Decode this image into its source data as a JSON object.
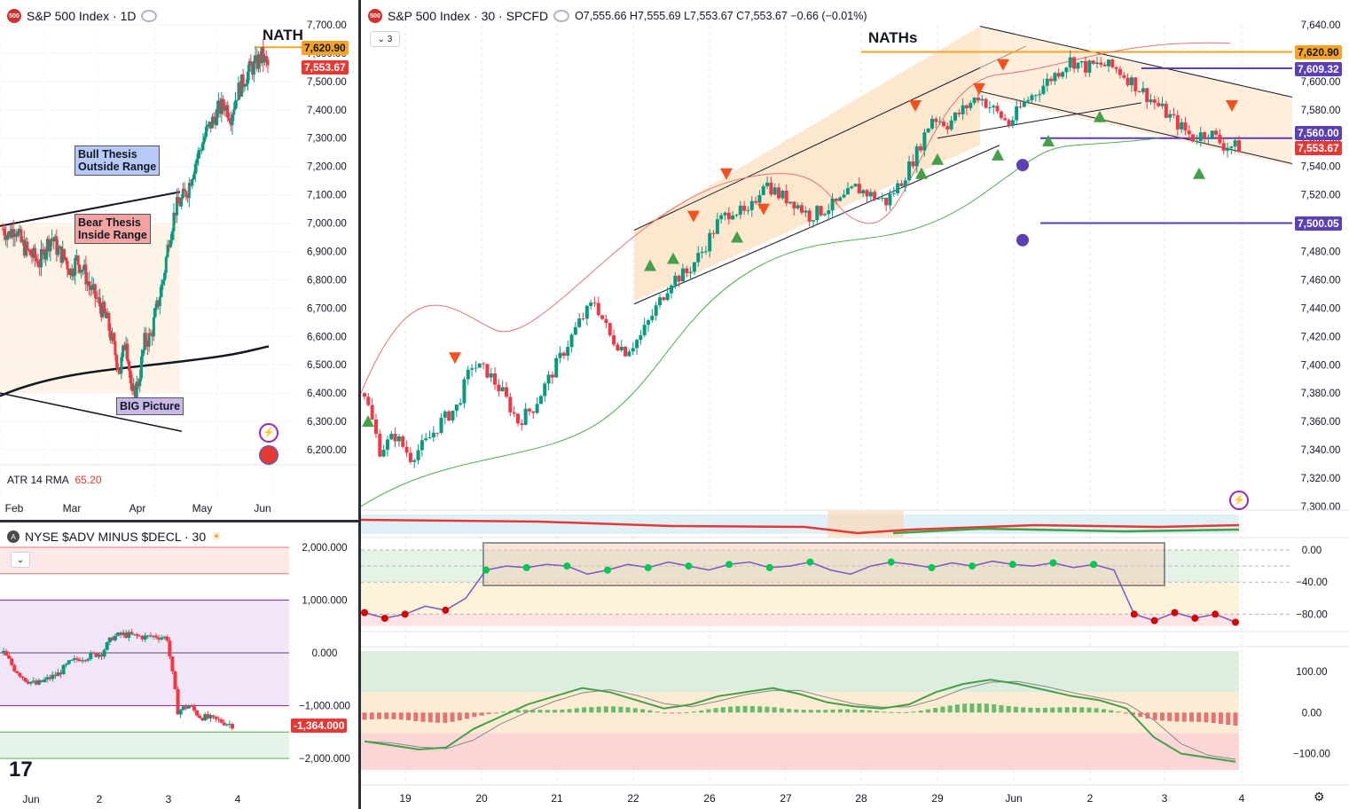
{
  "left_top": {
    "title": "S&P 500 Index · 1D",
    "symbol_badge": "500",
    "price_high_tag": "7,620.90",
    "price_last_tag": "7,553.67",
    "nath_label": "NATH",
    "notes": {
      "bull": [
        "Bull Thesis",
        "Outside Range"
      ],
      "bear": [
        "Bear Thesis",
        "Inside Range"
      ],
      "big": "BIG Picture"
    },
    "atr_label": "ATR 14 RMA",
    "atr_value": "65.20",
    "x_labels": [
      "Feb",
      "Mar",
      "Apr",
      "May",
      "Jun"
    ],
    "y_labels": [
      "7,700.00",
      "7,600.00",
      "7,500.00",
      "7,400.00",
      "7,300.00",
      "7,200.00",
      "7,100.00",
      "7,000.00",
      "6,900.00",
      "6,800.00",
      "6,700.00",
      "6,600.00",
      "6,500.00",
      "6,400.00",
      "6,300.00",
      "6,200.00"
    ]
  },
  "left_bottom": {
    "title": "NYSE $ADV MINUS $DECL · 30",
    "last_tag": "-1,364.000",
    "y_labels": [
      "2,000.000",
      "1,000.000",
      "0.000",
      "−1,000.000",
      "−2,000.000"
    ],
    "x_labels": [
      "Jun",
      "2",
      "3",
      "4"
    ]
  },
  "main": {
    "title": "S&P 500 Index · 30 · SPCFD",
    "symbol_badge": "500",
    "ohlc": "O7,555.66 H7,555.69 L7,553.67 C7,553.67 −0.66 (−0.01%)",
    "collapse_count": "3",
    "naths_label": "NATHs",
    "tags": {
      "t1": "7,620.90",
      "t2": "7,609.32",
      "t3": "7,560.00",
      "t4": "7,553.67",
      "t5": "7,500.05"
    },
    "y_labels": [
      "7,640.00",
      "7,620.00",
      "7,600.00",
      "7,580.00",
      "7,560.00",
      "7,540.00",
      "7,520.00",
      "7,500.00",
      "7,480.00",
      "7,460.00",
      "7,440.00",
      "7,420.00",
      "7,400.00",
      "7,380.00",
      "7,360.00",
      "7,340.00",
      "7,320.00",
      "7,300.00"
    ],
    "x_labels": [
      "19",
      "20",
      "21",
      "22",
      "26",
      "27",
      "28",
      "29",
      "Jun",
      "2",
      "3",
      "4"
    ]
  },
  "osc1": {
    "y_labels": [
      "0.00",
      "−40.00",
      "−80.00"
    ]
  },
  "osc2": {
    "y_labels": [
      "100.00",
      "0.00",
      "−100.00"
    ]
  },
  "chart_data": [
    {
      "type": "candlestick",
      "title": "S&P 500 Index · 1D",
      "x_labels": [
        "Feb",
        "Mar",
        "Apr",
        "May",
        "Jun"
      ],
      "ylim": [
        6150,
        7720
      ],
      "close_path": [
        6980,
        6960,
        6990,
        6930,
        6900,
        6880,
        6860,
        6920,
        6950,
        6900,
        6880,
        6830,
        6870,
        6840,
        6780,
        6740,
        6700,
        6650,
        6560,
        6480,
        6600,
        6380,
        6440,
        6580,
        6600,
        6700,
        6800,
        6950,
        7050,
        7080,
        7120,
        7200,
        7260,
        7320,
        7360,
        7400,
        7420,
        7380,
        7460,
        7500,
        7540,
        7560,
        7590,
        7553.67
      ],
      "annotations": [
        "NATH",
        "Bull Thesis Outside Range",
        "Bear Thesis Inside Range",
        "BIG Picture"
      ],
      "indicator": {
        "name": "ATR 14 RMA",
        "value": "65.20"
      }
    },
    {
      "type": "candlestick",
      "title": "S&P 500 Index · 30 · SPCFD",
      "x_labels": [
        "19",
        "20",
        "21",
        "22",
        "26",
        "27",
        "28",
        "29",
        "Jun",
        "2",
        "3",
        "4"
      ],
      "ylim": [
        7290,
        7648
      ],
      "close_path": [
        7380,
        7340,
        7350,
        7335,
        7345,
        7360,
        7370,
        7400,
        7395,
        7380,
        7360,
        7370,
        7390,
        7410,
        7430,
        7445,
        7420,
        7410,
        7420,
        7440,
        7460,
        7465,
        7480,
        7500,
        7510,
        7505,
        7530,
        7520,
        7515,
        7505,
        7510,
        7515,
        7525,
        7520,
        7515,
        7530,
        7550,
        7575,
        7570,
        7580,
        7590,
        7580,
        7570,
        7585,
        7595,
        7605,
        7615,
        7610,
        7612,
        7609,
        7600,
        7590,
        7580,
        7570,
        7560,
        7565,
        7555,
        7553.67
      ],
      "annotations": [
        "NATHs"
      ],
      "levels": [
        7620.9,
        7609.32,
        7560.0,
        7500.05
      ]
    },
    {
      "type": "line",
      "title": "",
      "ylim": [
        -95,
        8
      ],
      "y_ticks": [
        0,
        -40,
        -80
      ],
      "values": [
        -78,
        -85,
        -80,
        -70,
        -75,
        -60,
        -25,
        -20,
        -22,
        -18,
        -20,
        -30,
        -25,
        -18,
        -22,
        -15,
        -20,
        -25,
        -18,
        -15,
        -22,
        -20,
        -15,
        -25,
        -30,
        -20,
        -15,
        -18,
        -22,
        -16,
        -20,
        -14,
        -18,
        -20,
        -16,
        -22,
        -18,
        -25,
        -80,
        -88,
        -78,
        -85,
        -80,
        -90
      ]
    },
    {
      "type": "line",
      "title": "",
      "ylim": [
        -140,
        150
      ],
      "y_ticks": [
        100,
        0,
        -100
      ],
      "values": [
        -70,
        -80,
        -90,
        -85,
        -40,
        -10,
        20,
        40,
        60,
        50,
        30,
        10,
        20,
        40,
        50,
        60,
        45,
        25,
        15,
        10,
        20,
        50,
        70,
        80,
        70,
        55,
        40,
        30,
        10,
        -60,
        -100,
        -110,
        -120
      ]
    },
    {
      "type": "candlestick",
      "title": "NYSE $ADV MINUS $DECL · 30",
      "x_labels": [
        "Jun",
        "2",
        "3",
        "4"
      ],
      "ylim": [
        -2300,
        2250
      ],
      "close_path": [
        0,
        -300,
        -500,
        -600,
        -500,
        -400,
        -200,
        -100,
        -50,
        0,
        300,
        350,
        320,
        300,
        320,
        280,
        -1100,
        -1000,
        -1200,
        -1250,
        -1300,
        -1364
      ]
    }
  ]
}
